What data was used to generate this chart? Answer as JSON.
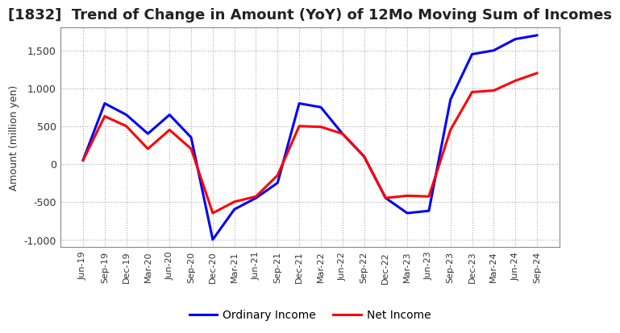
{
  "title": "[1832]  Trend of Change in Amount (YoY) of 12Mo Moving Sum of Incomes",
  "ylabel": "Amount (million yen)",
  "xlabels": [
    "Jun-19",
    "Sep-19",
    "Dec-19",
    "Mar-20",
    "Jun-20",
    "Sep-20",
    "Dec-20",
    "Mar-21",
    "Jun-21",
    "Sep-21",
    "Dec-21",
    "Mar-22",
    "Jun-22",
    "Sep-22",
    "Dec-22",
    "Mar-23",
    "Jun-23",
    "Sep-23",
    "Dec-23",
    "Mar-24",
    "Jun-24",
    "Sep-24"
  ],
  "ordinary_income": [
    50,
    800,
    650,
    400,
    650,
    350,
    -1000,
    -600,
    -450,
    -250,
    800,
    750,
    400,
    100,
    -450,
    -650,
    -620,
    850,
    1450,
    1500,
    1650,
    1700
  ],
  "net_income": [
    50,
    630,
    500,
    200,
    450,
    200,
    -650,
    -500,
    -430,
    -150,
    500,
    490,
    400,
    100,
    -450,
    -420,
    -430,
    450,
    950,
    970,
    1100,
    1200
  ],
  "ordinary_color": "#0000ff",
  "net_color": "#ff0000",
  "ylim": [
    -1100,
    1800
  ],
  "yticks": [
    -1000,
    -500,
    0,
    500,
    1000,
    1500
  ],
  "background_color": "#ffffff",
  "grid_color": "#aaaaaa",
  "title_color": "#222222",
  "title_fontsize": 13,
  "legend_fontsize": 10
}
